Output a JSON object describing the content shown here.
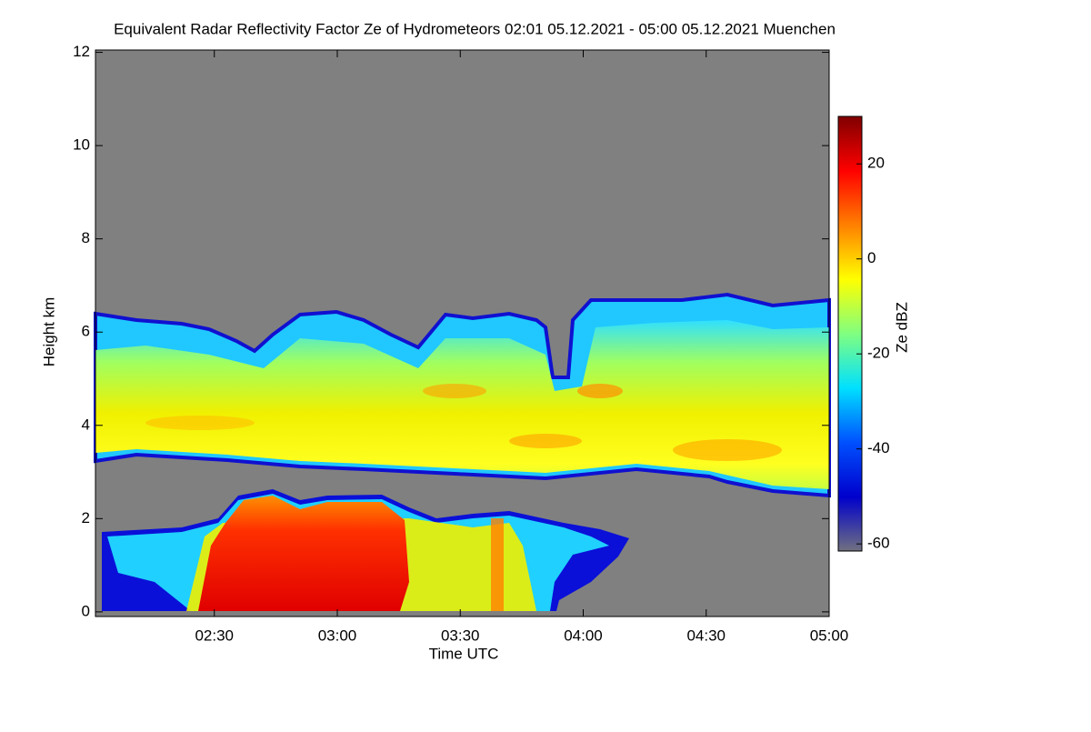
{
  "chart_data": {
    "type": "heatmap",
    "title": "Equivalent Radar Reflectivity Factor Ze of Hydrometeors   02:01 05.12.2021 - 05:00 05.12.2021 Muenchen",
    "xlabel": "Time UTC",
    "ylabel": "Height km",
    "xlim": [
      "02:01",
      "05:00"
    ],
    "xticks": [
      "02:30",
      "03:00",
      "03:30",
      "04:00",
      "04:30",
      "05:00"
    ],
    "ylim": [
      -0.1,
      12.05
    ],
    "yticks": [
      0,
      2,
      4,
      6,
      8,
      10,
      12
    ],
    "colorbar_label": "Ze dBZ",
    "clim": [
      -61.5,
      30
    ],
    "cticks": [
      -60,
      -40,
      -20,
      0,
      20
    ],
    "colormap": [
      "#707080",
      "#0000cc",
      "#0050ff",
      "#00e0ff",
      "#80ff80",
      "#ffff00",
      "#ff8000",
      "#ff0000",
      "#800000"
    ],
    "background": "#808080"
  }
}
